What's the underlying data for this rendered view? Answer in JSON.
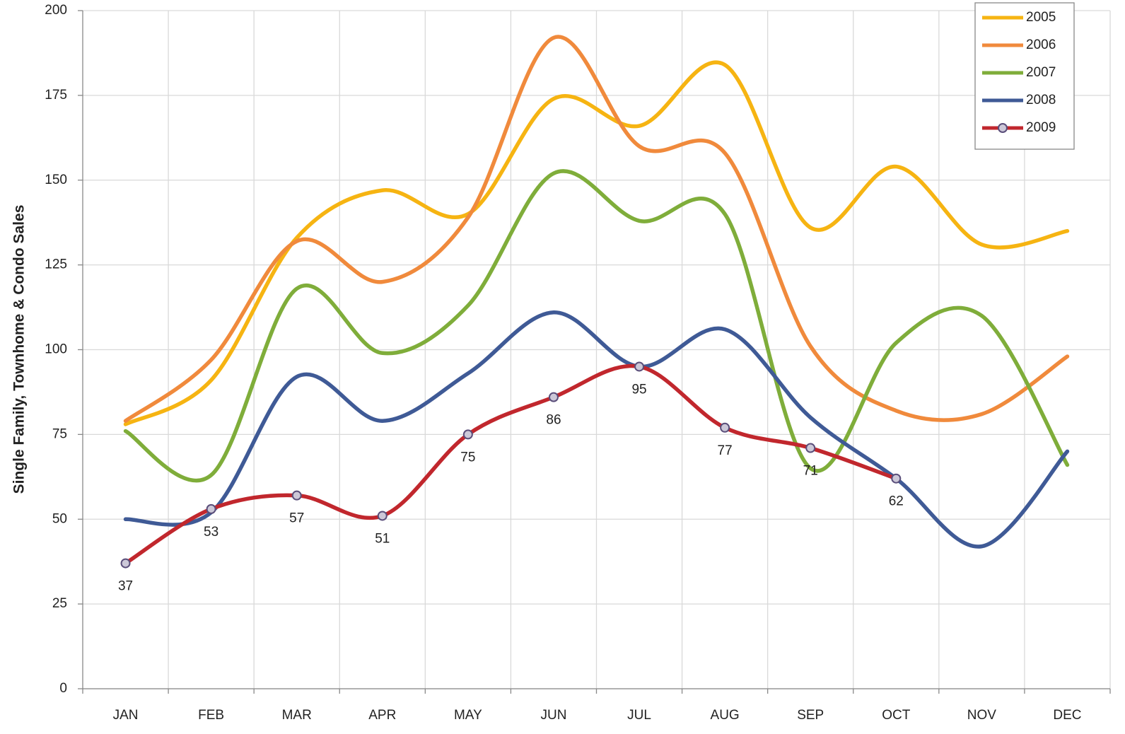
{
  "chart_data": {
    "type": "line",
    "y_label": "Single Family, Townhome & Condo Sales",
    "categories": [
      "JAN",
      "FEB",
      "MAR",
      "APR",
      "MAY",
      "JUN",
      "JUL",
      "AUG",
      "SEP",
      "OCT",
      "NOV",
      "DEC"
    ],
    "series": [
      {
        "name": "2005",
        "color": "#f6b412",
        "values": [
          78,
          91,
          133,
          147,
          140,
          174,
          166,
          184,
          136,
          154,
          131,
          135
        ]
      },
      {
        "name": "2006",
        "color": "#f08a3c",
        "values": [
          79,
          97,
          132,
          120,
          139,
          192,
          160,
          158,
          101,
          82,
          81,
          98
        ]
      },
      {
        "name": "2007",
        "color": "#7fad3a",
        "values": [
          76,
          63,
          118,
          99,
          113,
          152,
          138,
          140,
          65,
          102,
          110,
          66
        ]
      },
      {
        "name": "2008",
        "color": "#3f5a96",
        "values": [
          50,
          52,
          92,
          79,
          93,
          111,
          95,
          106,
          80,
          62,
          42,
          70
        ]
      },
      {
        "name": "2009",
        "color": "#c1272d",
        "markers": true,
        "values": [
          37,
          53,
          57,
          51,
          75,
          86,
          95,
          77,
          71,
          62,
          null,
          null
        ]
      }
    ],
    "ylim": [
      0,
      200
    ],
    "yticks": [
      0,
      25,
      50,
      75,
      100,
      125,
      150,
      175,
      200
    ],
    "grid": true,
    "smooth": true,
    "legend": "upper right",
    "data_labels_series": 4
  }
}
